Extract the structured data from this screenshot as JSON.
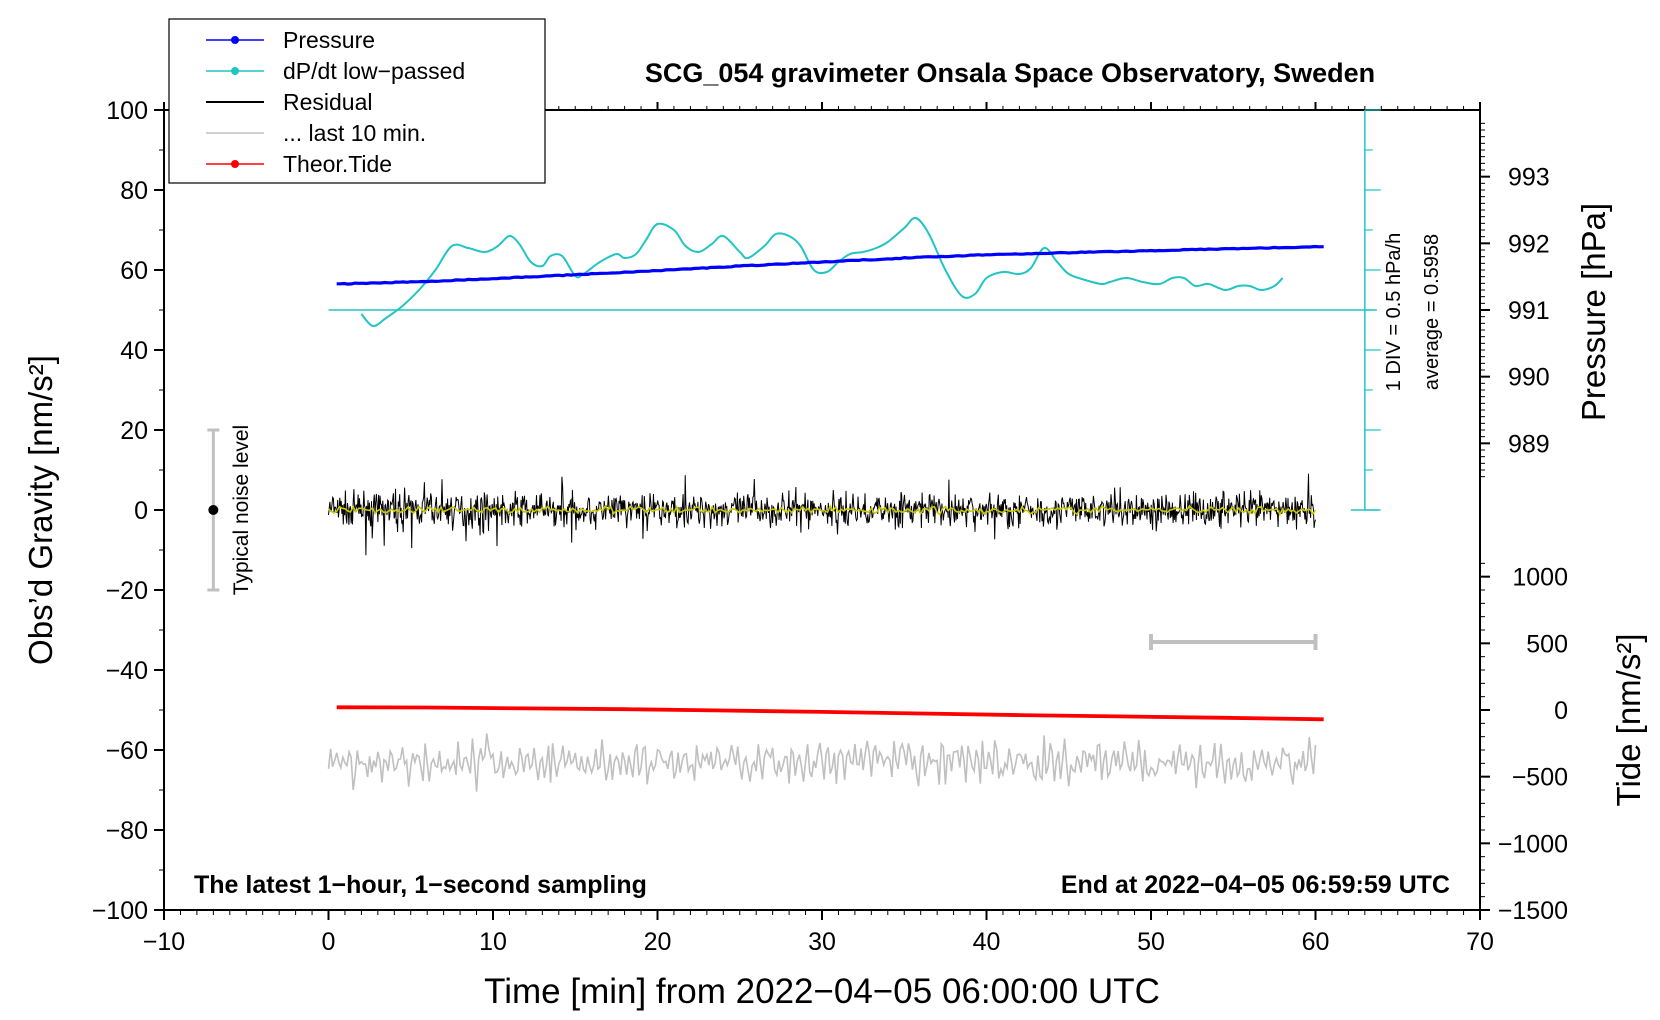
{
  "chart_data": {
    "type": "line",
    "title": "SCG_054 gravimeter Onsala Space Observatory, Sweden",
    "xlabel": "Time [min] from 2022−04−05 06:00:00 UTC",
    "ylabel_left": "Obs’d Gravity [nm/s²]",
    "ylabel_right_top": "Pressure [hPa]",
    "ylabel_right_bottom": "Tide [nm/s²]",
    "xlim": [
      -10,
      70
    ],
    "ylim": [
      -100,
      100
    ],
    "x_ticks": [
      "−10",
      "0",
      "10",
      "20",
      "30",
      "40",
      "50",
      "60",
      "70"
    ],
    "x_tick_values": [
      -10,
      0,
      10,
      20,
      30,
      40,
      50,
      60,
      70
    ],
    "y_ticks": [
      "100",
      "80",
      "60",
      "40",
      "20",
      "0",
      "−20",
      "−40",
      "−60",
      "−80",
      "−100"
    ],
    "y_tick_values": [
      100,
      80,
      60,
      40,
      20,
      0,
      -20,
      -40,
      -60,
      -80,
      -100
    ],
    "pressure_axis": {
      "ticks": [
        "993",
        "992",
        "991",
        "990",
        "989"
      ],
      "tick_values": [
        993,
        992,
        991,
        990,
        989
      ],
      "note": "991 hPa aligns with gravity 50; 1 hPa = 16.67 gravity units"
    },
    "tide_axis": {
      "ticks": [
        "1000",
        "500",
        "0",
        "−500",
        "−1000",
        "−1500"
      ],
      "tick_values": [
        1000,
        500,
        0,
        -500,
        -1000,
        -1500
      ],
      "note": "0 nm/s² aligns with gravity -50; 500 nm/s² = 16.67 gravity units"
    },
    "legend": [
      {
        "label": "Pressure",
        "color": "#0000ff",
        "marker": true
      },
      {
        "label": "dP/dt low−passed",
        "color": "#22c4c4",
        "marker": true
      },
      {
        "label": "Residual",
        "color": "#000000",
        "marker": false
      },
      {
        "label": "... last 10 min.",
        "color": "#c0c0c0",
        "marker": false
      },
      {
        "label": "Theor.Tide",
        "color": "#ff0000",
        "marker": true
      }
    ],
    "series": [
      {
        "name": "Pressure",
        "unit": "hPa",
        "color": "#0000ff",
        "x": [
          0.5,
          5,
          10,
          15,
          20,
          25,
          30,
          35,
          40,
          45,
          50,
          55,
          60.5
        ],
        "y": [
          991.39,
          991.42,
          991.47,
          991.53,
          991.59,
          991.66,
          991.72,
          991.78,
          991.83,
          991.86,
          991.89,
          991.92,
          991.95
        ]
      },
      {
        "name": "dP/dt low−passed",
        "color": "#22c4c4",
        "x": [
          2,
          2.7,
          3.5,
          4.5,
          5.5,
          6.5,
          7.5,
          8.5,
          9.5,
          10.3,
          11,
          11.6,
          12.3,
          13,
          13.5,
          14.2,
          15,
          15.5,
          16.5,
          17.5,
          18,
          18.7,
          19.3,
          20,
          21,
          21.7,
          22.5,
          23.3,
          24,
          25,
          25.5,
          26.5,
          27.2,
          28,
          28.7,
          29.5,
          30.3,
          31,
          31.7,
          32.5,
          33.3,
          34,
          35,
          35.7,
          36.5,
          37.5,
          38.5,
          39.3,
          40,
          41,
          42,
          42.7,
          43.5,
          44.3,
          45,
          46,
          47,
          47.5,
          48.5,
          49.5,
          50.5,
          51.3,
          52,
          52.7,
          53.5,
          54.5,
          55.3,
          56,
          56.7,
          57.5,
          58
        ],
        "y": [
          49,
          46,
          48,
          51,
          55,
          60,
          66,
          65.5,
          64.5,
          66,
          68.5,
          66.5,
          62,
          61,
          63.5,
          63.5,
          58.5,
          59,
          62,
          64,
          63,
          64,
          67.5,
          71.5,
          70,
          66,
          64.5,
          66.5,
          68.5,
          64.5,
          63,
          66,
          69,
          68.5,
          66,
          60,
          59.5,
          62,
          64,
          64.5,
          65.5,
          67,
          70.5,
          73,
          69,
          60,
          53.5,
          54,
          58,
          59.5,
          59,
          60.5,
          65.5,
          62,
          59,
          57.5,
          56.5,
          57,
          58,
          57,
          56.5,
          58,
          58,
          56,
          56.5,
          55,
          56,
          56,
          55,
          56,
          58
        ]
      },
      {
        "name": "Residual",
        "color": "#000000",
        "x_range": [
          0,
          60
        ],
        "amplitude_typical": 8,
        "max": 13,
        "min": -13
      },
      {
        "name": "... last 10 min.",
        "color": "#c0c0c0",
        "x_range": [
          0,
          60
        ],
        "baseline": -63,
        "max": -51,
        "min": -72
      },
      {
        "name": "Theor.Tide",
        "unit": "nm/s²",
        "color": "#ff0000",
        "x": [
          0.5,
          6,
          12,
          18,
          24,
          30,
          36,
          42,
          48,
          54,
          60.5
        ],
        "y": [
          20,
          19,
          12,
          6,
          -4,
          -14,
          -26,
          -38,
          -48,
          -58,
          -70
        ]
      }
    ],
    "annotations": {
      "bottom_left": "The latest 1−hour, 1−second sampling",
      "bottom_right": "End at 2022−04−05 06:59:59 UTC",
      "noise_label": "Typical noise level",
      "noise_bar": {
        "x": -7,
        "center": 0,
        "half_range": 20
      },
      "div_label": "1 DIV = 0.5 hPa/h",
      "average_label": "average = 0.5958",
      "ten_min_bar": {
        "x_start": 50,
        "x_end": 60,
        "y": -33
      },
      "dpdt_reference_level": 50,
      "dpdt_scale_axis": {
        "x": 63,
        "y_from": 0,
        "y_to": 100,
        "major_every": 20,
        "minor_every": 10
      }
    }
  }
}
